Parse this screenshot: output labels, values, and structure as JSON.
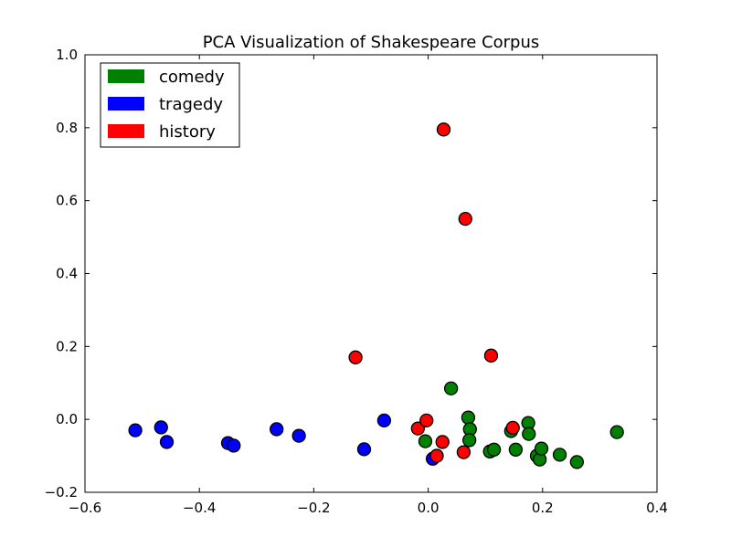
{
  "chart_data": {
    "type": "scatter",
    "title": "PCA Visualization of Shakespeare Corpus",
    "xlabel": "",
    "ylabel": "",
    "xlim": [
      -0.6,
      0.4
    ],
    "ylim": [
      -0.2,
      1.0
    ],
    "xticks": [
      -0.6,
      -0.4,
      -0.2,
      0.0,
      0.2,
      0.4
    ],
    "yticks": [
      -0.2,
      0.0,
      0.2,
      0.4,
      0.6,
      0.8,
      1.0
    ],
    "xtick_labels": [
      "−0.6",
      "−0.4",
      "−0.2",
      "0.0",
      "0.2",
      "0.4"
    ],
    "ytick_labels": [
      "−0.2",
      "0.0",
      "0.2",
      "0.4",
      "0.6",
      "0.8",
      "1.0"
    ],
    "grid": false,
    "legend_position": "top-left",
    "series": [
      {
        "name": "comedy",
        "color": "#008000",
        "points": [
          {
            "x": 0.04,
            "y": 0.085
          },
          {
            "x": 0.07,
            "y": 0.005
          },
          {
            "x": 0.073,
            "y": -0.027
          },
          {
            "x": 0.072,
            "y": -0.057
          },
          {
            "x": -0.005,
            "y": -0.06
          },
          {
            "x": 0.108,
            "y": -0.088
          },
          {
            "x": 0.115,
            "y": -0.083
          },
          {
            "x": 0.145,
            "y": -0.032
          },
          {
            "x": 0.153,
            "y": -0.083
          },
          {
            "x": 0.175,
            "y": -0.01
          },
          {
            "x": 0.176,
            "y": -0.04
          },
          {
            "x": 0.19,
            "y": -0.1
          },
          {
            "x": 0.195,
            "y": -0.11
          },
          {
            "x": 0.198,
            "y": -0.08
          },
          {
            "x": 0.23,
            "y": -0.097
          },
          {
            "x": 0.26,
            "y": -0.117
          },
          {
            "x": 0.33,
            "y": -0.035
          }
        ]
      },
      {
        "name": "tragedy",
        "color": "#0000ff",
        "points": [
          {
            "x": -0.512,
            "y": -0.03
          },
          {
            "x": -0.467,
            "y": -0.022
          },
          {
            "x": -0.457,
            "y": -0.062
          },
          {
            "x": -0.35,
            "y": -0.065
          },
          {
            "x": -0.34,
            "y": -0.072
          },
          {
            "x": -0.265,
            "y": -0.027
          },
          {
            "x": -0.226,
            "y": -0.045
          },
          {
            "x": -0.112,
            "y": -0.082
          },
          {
            "x": -0.077,
            "y": -0.003
          },
          {
            "x": 0.008,
            "y": -0.108
          }
        ]
      },
      {
        "name": "history",
        "color": "#ff0000",
        "points": [
          {
            "x": 0.027,
            "y": 0.795
          },
          {
            "x": 0.065,
            "y": 0.55
          },
          {
            "x": 0.11,
            "y": 0.175
          },
          {
            "x": -0.127,
            "y": 0.17
          },
          {
            "x": -0.018,
            "y": -0.025
          },
          {
            "x": -0.003,
            "y": -0.003
          },
          {
            "x": 0.025,
            "y": -0.062
          },
          {
            "x": 0.015,
            "y": -0.1
          },
          {
            "x": 0.062,
            "y": -0.09
          },
          {
            "x": 0.148,
            "y": -0.023
          }
        ]
      }
    ]
  }
}
